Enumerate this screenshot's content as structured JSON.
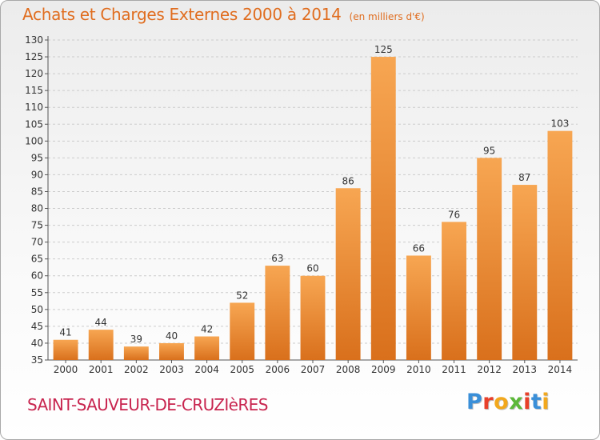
{
  "title": {
    "main": "Achats et Charges Externes 2000 à 2014",
    "unit": "(en milliers d'€)"
  },
  "commune": "SAINT-SAUVEUR-DE-CRUZIèRES",
  "logo": {
    "letters": [
      "P",
      "r",
      "o",
      "x",
      "i",
      "t",
      "i"
    ],
    "colors": [
      "#3a8fd8",
      "#e8402a",
      "#f2a81d",
      "#5cb83a",
      "#e8402a",
      "#3a8fd8",
      "#f2a81d"
    ]
  },
  "colors": {
    "bar_top": "#f7a652",
    "bar_bottom": "#d9701c",
    "axis": "#555555",
    "grid": "#cccccc"
  },
  "chart_data": {
    "type": "bar",
    "categories": [
      "2000",
      "2001",
      "2002",
      "2003",
      "2004",
      "2005",
      "2006",
      "2007",
      "2008",
      "2009",
      "2010",
      "2011",
      "2012",
      "2013",
      "2014"
    ],
    "values": [
      41,
      44,
      39,
      40,
      42,
      52,
      63,
      60,
      86,
      125,
      66,
      76,
      95,
      87,
      103
    ],
    "title": "Achats et Charges Externes 2000 à 2014",
    "ylim": [
      35,
      130
    ],
    "yticks": [
      35,
      40,
      45,
      50,
      55,
      60,
      65,
      70,
      75,
      80,
      85,
      90,
      95,
      100,
      105,
      110,
      115,
      120,
      125,
      130
    ],
    "grid": true
  }
}
